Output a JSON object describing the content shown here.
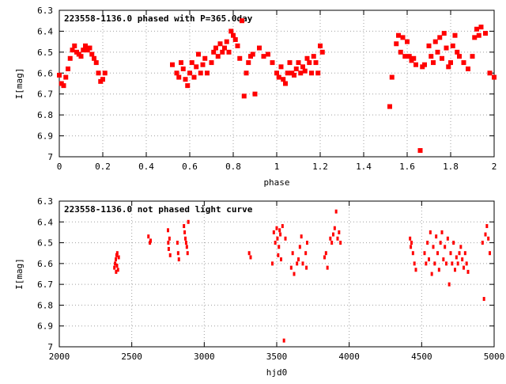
{
  "chart_data": [
    {
      "type": "scatter",
      "title": "223558-1136.0 phased with P=365.0day",
      "xlabel": "phase",
      "ylabel": "I[mag]",
      "xlim": [
        0,
        2
      ],
      "ylim": [
        7,
        6.3
      ],
      "y_inverted": true,
      "xticks": [
        "0",
        "0.2",
        "0.4",
        "0.6",
        "0.8",
        "1",
        "1.2",
        "1.4",
        "1.6",
        "1.8",
        "2"
      ],
      "xtick_values": [
        0,
        0.2,
        0.4,
        0.6,
        0.8,
        1.0,
        1.2,
        1.4,
        1.6,
        1.8,
        2.0
      ],
      "yticks": [
        "6.3",
        "6.4",
        "6.5",
        "6.6",
        "6.7",
        "6.8",
        "6.9",
        "7"
      ],
      "ytick_values": [
        6.3,
        6.4,
        6.5,
        6.6,
        6.7,
        6.8,
        6.9,
        7.0
      ],
      "grid": true,
      "marker_color": "#ff0000",
      "series": [
        {
          "x": [
            0.0,
            0.01,
            0.02,
            0.03,
            0.04,
            0.05,
            0.06,
            0.07,
            0.08,
            0.09,
            0.1,
            0.11,
            0.12,
            0.13,
            0.14,
            0.15,
            0.16,
            0.17,
            0.18,
            0.19,
            0.2,
            0.21,
            0.52,
            0.54,
            0.55,
            0.56,
            0.57,
            0.58,
            0.59,
            0.6,
            0.61,
            0.62,
            0.63,
            0.64,
            0.65,
            0.66,
            0.67,
            0.68,
            0.7,
            0.71,
            0.72,
            0.73,
            0.74,
            0.75,
            0.76,
            0.77,
            0.78,
            0.79,
            0.8,
            0.81,
            0.82,
            0.83,
            0.84,
            0.85,
            0.86,
            0.87,
            0.88,
            0.89,
            0.9,
            0.92,
            0.94,
            0.96,
            0.98,
            1.0,
            1.01,
            1.02,
            1.03,
            1.04,
            1.05,
            1.06,
            1.07,
            1.08,
            1.09,
            1.1,
            1.11,
            1.12,
            1.13,
            1.14,
            1.15,
            1.16,
            1.17,
            1.18,
            1.19,
            1.2,
            1.21,
            1.52,
            1.53,
            1.55,
            1.56,
            1.57,
            1.58,
            1.59,
            1.6,
            1.61,
            1.62,
            1.63,
            1.64,
            1.66,
            1.67,
            1.68,
            1.7,
            1.71,
            1.72,
            1.73,
            1.74,
            1.75,
            1.76,
            1.77,
            1.78,
            1.79,
            1.8,
            1.81,
            1.82,
            1.83,
            1.84,
            1.86,
            1.88,
            1.9,
            1.91,
            1.92,
            1.93,
            1.94,
            1.96,
            1.98,
            2.0
          ],
          "y": [
            6.61,
            6.65,
            6.66,
            6.62,
            6.58,
            6.53,
            6.49,
            6.47,
            6.5,
            6.51,
            6.52,
            6.49,
            6.47,
            6.49,
            6.48,
            6.51,
            6.53,
            6.55,
            6.6,
            6.64,
            6.63,
            6.6,
            6.56,
            6.6,
            6.62,
            6.55,
            6.58,
            6.63,
            6.66,
            6.6,
            6.55,
            6.62,
            6.57,
            6.51,
            6.6,
            6.56,
            6.53,
            6.6,
            6.55,
            6.5,
            6.48,
            6.52,
            6.46,
            6.5,
            6.48,
            6.45,
            6.5,
            6.4,
            6.42,
            6.44,
            6.47,
            6.53,
            6.35,
            6.71,
            6.6,
            6.55,
            6.52,
            6.51,
            6.7,
            6.48,
            6.52,
            6.51,
            6.55,
            6.6,
            6.62,
            6.57,
            6.63,
            6.65,
            6.6,
            6.55,
            6.6,
            6.61,
            6.58,
            6.55,
            6.6,
            6.57,
            6.59,
            6.53,
            6.55,
            6.6,
            6.52,
            6.55,
            6.6,
            6.47,
            6.5,
            6.76,
            6.62,
            6.46,
            6.42,
            6.5,
            6.43,
            6.52,
            6.45,
            6.52,
            6.54,
            6.53,
            6.56,
            6.97,
            6.57,
            6.56,
            6.47,
            6.52,
            6.55,
            6.45,
            6.5,
            6.43,
            6.53,
            6.41,
            6.48,
            6.57,
            6.55,
            6.47,
            6.42,
            6.5,
            6.52,
            6.55,
            6.58,
            6.52,
            6.43,
            6.39,
            6.42,
            6.38,
            6.41,
            6.6,
            6.62
          ]
        }
      ]
    },
    {
      "type": "scatter",
      "title": "223558-1136.0 not phased light curve",
      "xlabel": "hjd0",
      "ylabel": "I[mag]",
      "xlim": [
        2000,
        5000
      ],
      "ylim": [
        7,
        6.3
      ],
      "y_inverted": true,
      "xticks": [
        "2000",
        "2500",
        "3000",
        "3500",
        "4000",
        "4500",
        "5000"
      ],
      "xtick_values": [
        2000,
        2500,
        3000,
        3500,
        4000,
        4500,
        5000
      ],
      "yticks": [
        "6.3",
        "6.4",
        "6.5",
        "6.6",
        "6.7",
        "6.8",
        "6.9",
        "7"
      ],
      "ytick_values": [
        6.3,
        6.4,
        6.5,
        6.6,
        6.7,
        6.8,
        6.9,
        7.0
      ],
      "grid": true,
      "marker_color": "#ff0000",
      "series": [
        {
          "x": [
            2380,
            2385,
            2390,
            2392,
            2395,
            2398,
            2400,
            2405,
            2410,
            2615,
            2625,
            2630,
            2750,
            2752,
            2755,
            2760,
            2765,
            2815,
            2820,
            2825,
            2860,
            2865,
            2870,
            2875,
            2880,
            2885,
            2890,
            3310,
            3320,
            3470,
            3480,
            3490,
            3500,
            3505,
            3510,
            3515,
            3520,
            3525,
            3530,
            3540,
            3550,
            3560,
            3600,
            3610,
            3620,
            3640,
            3650,
            3660,
            3670,
            3680,
            3700,
            3705,
            3710,
            3830,
            3840,
            3850,
            3870,
            3880,
            3890,
            3900,
            3910,
            3920,
            3930,
            3940,
            4420,
            4425,
            4430,
            4440,
            4450,
            4460,
            4520,
            4530,
            4540,
            4550,
            4560,
            4570,
            4580,
            4590,
            4600,
            4610,
            4620,
            4630,
            4640,
            4650,
            4660,
            4670,
            4680,
            4690,
            4700,
            4710,
            4720,
            4730,
            4740,
            4750,
            4760,
            4770,
            4780,
            4790,
            4800,
            4810,
            4820,
            4920,
            4930,
            4940,
            4950,
            4960,
            4970
          ],
          "y": [
            6.62,
            6.6,
            6.58,
            6.64,
            6.56,
            6.61,
            6.55,
            6.63,
            6.57,
            6.47,
            6.5,
            6.49,
            6.44,
            6.5,
            6.53,
            6.48,
            6.56,
            6.5,
            6.55,
            6.58,
            6.42,
            6.45,
            6.48,
            6.5,
            6.52,
            6.55,
            6.4,
            6.55,
            6.57,
            6.6,
            6.45,
            6.5,
            6.43,
            6.48,
            6.56,
            6.52,
            6.44,
            6.46,
            6.58,
            6.42,
            6.97,
            6.48,
            6.62,
            6.55,
            6.65,
            6.6,
            6.58,
            6.52,
            6.47,
            6.6,
            6.55,
            6.62,
            6.5,
            6.57,
            6.55,
            6.62,
            6.48,
            6.5,
            6.46,
            6.43,
            6.35,
            6.48,
            6.45,
            6.5,
            6.48,
            6.52,
            6.5,
            6.55,
            6.6,
            6.63,
            6.55,
            6.6,
            6.5,
            6.58,
            6.45,
            6.65,
            6.52,
            6.6,
            6.47,
            6.55,
            6.63,
            6.5,
            6.45,
            6.58,
            6.52,
            6.6,
            6.48,
            6.7,
            6.55,
            6.6,
            6.5,
            6.63,
            6.57,
            6.6,
            6.55,
            6.52,
            6.58,
            6.62,
            6.55,
            6.6,
            6.64,
            6.5,
            6.77,
            6.46,
            6.42,
            6.48,
            6.55
          ]
        }
      ]
    }
  ]
}
